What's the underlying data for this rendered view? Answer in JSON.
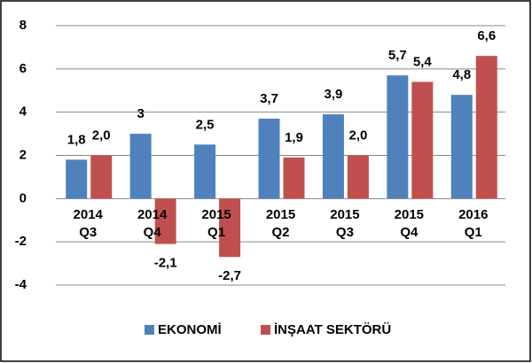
{
  "chart_data": {
    "type": "bar",
    "categories": [
      "2014 Q3",
      "2014 Q4",
      "2015 Q1",
      "2015 Q2",
      "2015 Q3",
      "2015 Q4",
      "2016 Q1"
    ],
    "series": [
      {
        "name": "EKONOMİ",
        "color": "#4f81bd",
        "values": [
          1.8,
          3,
          2.5,
          3.7,
          3.9,
          5.7,
          4.8
        ],
        "value_labels": [
          "1,8",
          "3",
          "2,5",
          "3,7",
          "3,9",
          "5,7",
          "4,8"
        ]
      },
      {
        "name": "İNŞAAT SEKTÖRÜ",
        "color": "#c0504d",
        "values": [
          2.0,
          -2.1,
          -2.7,
          1.9,
          2.0,
          5.4,
          6.6
        ],
        "value_labels": [
          "2,0",
          "-2,1",
          "-2,7",
          "1,9",
          "2,0",
          "5,4",
          "6,6"
        ]
      }
    ],
    "ylim": [
      -4,
      8
    ],
    "yticks": [
      8,
      6,
      4,
      2,
      0,
      -2,
      -4
    ],
    "grid": true,
    "legend": "bottom"
  }
}
